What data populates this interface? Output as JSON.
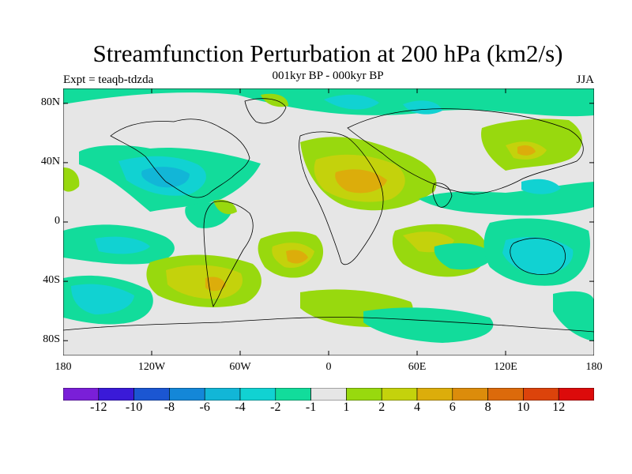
{
  "title": "Streamfunction Perturbation at 200 hPa (km2/s)",
  "subtitle": "001kyr BP - 000kyr BP",
  "left_label": "Expt = teaqb-tdzda",
  "right_label": "JJA",
  "map": {
    "y_ticks": [
      {
        "label": "80N",
        "lat": 80
      },
      {
        "label": "40N",
        "lat": 40
      },
      {
        "label": "0",
        "lat": 0
      },
      {
        "label": "40S",
        "lat": -40
      },
      {
        "label": "80S",
        "lat": -80
      }
    ],
    "x_ticks": [
      {
        "label": "180",
        "lon": -180
      },
      {
        "label": "120W",
        "lon": -120
      },
      {
        "label": "60W",
        "lon": -60
      },
      {
        "label": "0",
        "lon": 0
      },
      {
        "label": "60E",
        "lon": 60
      },
      {
        "label": "120E",
        "lon": 120
      },
      {
        "label": "180",
        "lon": 180
      }
    ],
    "lat_range": [
      -90,
      90
    ],
    "lon_range": [
      -180,
      180
    ]
  },
  "colorbar": {
    "colors": [
      "#7a1fd8",
      "#3a1ad8",
      "#1b56d2",
      "#1487d8",
      "#12b6d7",
      "#11d2d2",
      "#12dc9b",
      "#e6e6e6",
      "#98d90e",
      "#c4d20c",
      "#dcad0b",
      "#dc8c0b",
      "#dc6a0b",
      "#dc430b",
      "#dc0b0b"
    ],
    "labels": [
      "-12",
      "-10",
      "-8",
      "-6",
      "-4",
      "-2",
      "-1",
      "1",
      "2",
      "4",
      "6",
      "8",
      "10",
      "12"
    ]
  }
}
